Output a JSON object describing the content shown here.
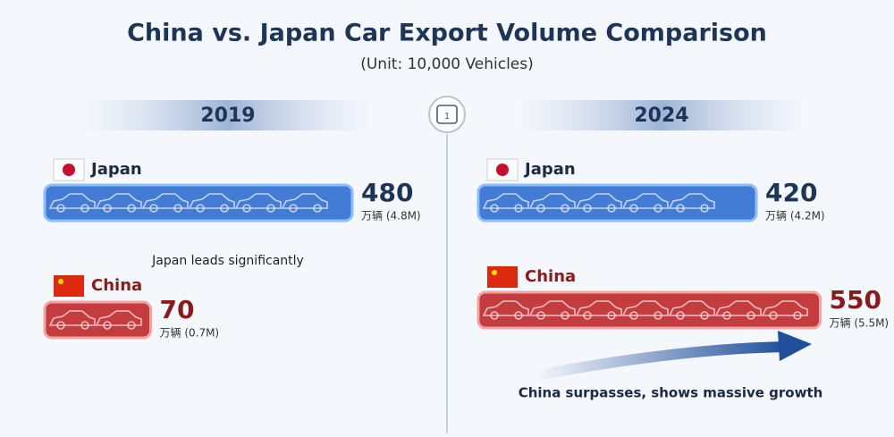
{
  "header": {
    "title": "China vs. Japan Car Export Volume Comparison",
    "subtitle": "(Unit: 10,000 Vehicles)",
    "divider_label": "1"
  },
  "chart_data": [
    {
      "type": "bar",
      "title": "2019",
      "categories": [
        "Japan",
        "China"
      ],
      "values": [
        480,
        70
      ],
      "unit_labels": [
        "万辆 (4.8M)",
        "万辆 (0.7M)"
      ],
      "colors": [
        "#2f6fd0",
        "#c0282b"
      ],
      "annotation": "Japan leads significantly"
    },
    {
      "type": "bar",
      "title": "2024",
      "categories": [
        "Japan",
        "China"
      ],
      "values": [
        420,
        550
      ],
      "unit_labels": [
        "万辆 (4.2M)",
        "万辆 (5.5M)"
      ],
      "colors": [
        "#2f6fd0",
        "#c0282b"
      ],
      "annotation": "China surpasses, shows massive growth"
    }
  ]
}
